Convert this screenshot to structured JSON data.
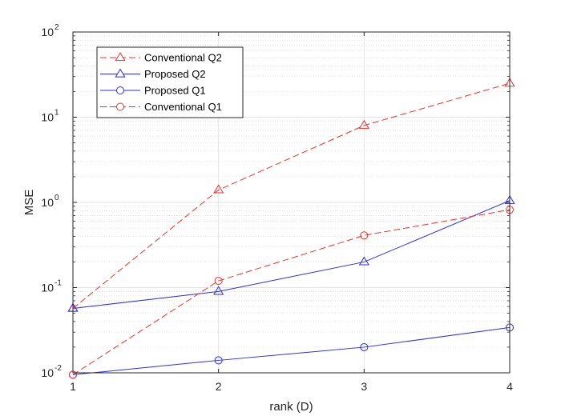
{
  "chart_data": {
    "type": "line",
    "title": "",
    "xlabel": "rank (D)",
    "ylabel": "MSE",
    "xscale": "linear",
    "yscale": "log",
    "xlim": [
      1,
      4
    ],
    "ylim": [
      0.01,
      100
    ],
    "x": [
      1,
      2,
      3,
      4
    ],
    "x_tick_labels": [
      "1",
      "2",
      "3",
      "4"
    ],
    "y_ticks": [
      {
        "value": 0.01,
        "base": "10",
        "exp": "-2"
      },
      {
        "value": 0.1,
        "base": "10",
        "exp": "-1"
      },
      {
        "value": 1,
        "base": "10",
        "exp": "0"
      },
      {
        "value": 10,
        "base": "10",
        "exp": "1"
      },
      {
        "value": 100,
        "base": "10",
        "exp": "2"
      }
    ],
    "grid": true,
    "minor_grid": true,
    "legend_position": "top-left",
    "series": [
      {
        "name": "Conventional Q2",
        "color": "#e8332d",
        "line": "dashed",
        "marker": "triangle",
        "values": [
          0.057,
          1.4,
          8.0,
          25.0
        ]
      },
      {
        "name": "Proposed Q2",
        "color": "#2e2ee0",
        "line": "solid",
        "marker": "triangle",
        "values": [
          0.057,
          0.09,
          0.2,
          1.05
        ]
      },
      {
        "name": "Proposed Q1",
        "color": "#2e2ee0",
        "line": "solid",
        "marker": "circle",
        "values": [
          0.0095,
          0.014,
          0.02,
          0.034
        ]
      },
      {
        "name": "Conventional Q1",
        "color": "#e8332d",
        "line": "dashed",
        "marker": "circle",
        "values": [
          0.0095,
          0.12,
          0.41,
          0.82
        ]
      }
    ]
  }
}
